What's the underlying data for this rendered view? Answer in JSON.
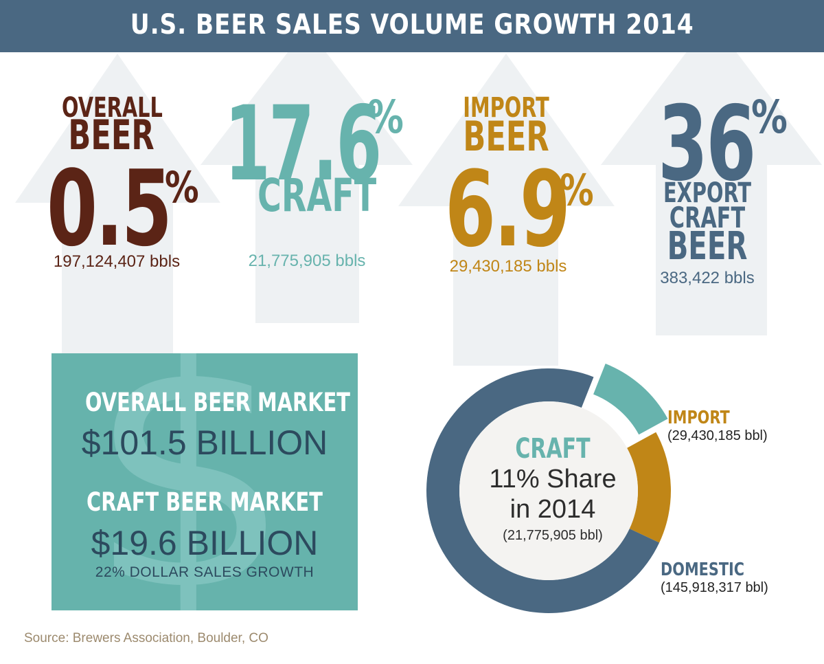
{
  "title": "U.S. BEER SALES VOLUME GROWTH 2014",
  "colors": {
    "banner": "#4a6882",
    "overall": "#5b2416",
    "craft": "#67b3ad",
    "import": "#c08617",
    "export": "#4a6882",
    "arrow_bg": "#eef1f3",
    "donut_hole": "#f4f3f1"
  },
  "stats": {
    "overall": {
      "line1": "OVERALL",
      "line2": "BEER",
      "value": "0.5",
      "pct": "%",
      "bbls": "197,124,407 bbls"
    },
    "craft": {
      "value": "17.6",
      "pct": "%",
      "label": "CRAFT",
      "bbls": "21,775,905 bbls"
    },
    "import": {
      "line1": "IMPORT",
      "line2": "BEER",
      "value": "6.9",
      "pct": "%",
      "bbls": "29,430,185 bbls"
    },
    "export": {
      "value": "36",
      "pct": "%",
      "line1": "EXPORT",
      "line2": "CRAFT",
      "line3": "BEER",
      "bbls": "383,422 bbls"
    }
  },
  "market": {
    "overall_heading": "OVERALL BEER MARKET",
    "overall_value": "$101.5 BILLION",
    "craft_heading": "CRAFT BEER MARKET",
    "craft_value": "$19.6 BILLION",
    "craft_note": "22% DOLLAR SALES GROWTH",
    "dollar_symbol": "$"
  },
  "donut": {
    "center_title": "CRAFT",
    "center_line1": "11% Share",
    "center_line2": "in 2014",
    "center_value": "(21,775,905 bbl)",
    "import_label": "IMPORT",
    "import_value": "(29,430,185 bbl)",
    "domestic_label": "DOMESTIC",
    "domestic_value": "(145,918,317 bbl)"
  },
  "chart_data": {
    "type": "pie",
    "title": "",
    "segments": [
      {
        "name": "CRAFT",
        "value": 21775905,
        "color": "#67b3ad",
        "exploded": true
      },
      {
        "name": "IMPORT",
        "value": 29430185,
        "color": "#c08617",
        "exploded": false
      },
      {
        "name": "DOMESTIC",
        "value": 145918317,
        "color": "#4a6882",
        "exploded": false
      }
    ]
  },
  "source": "Source: Brewers Association, Boulder, CO"
}
